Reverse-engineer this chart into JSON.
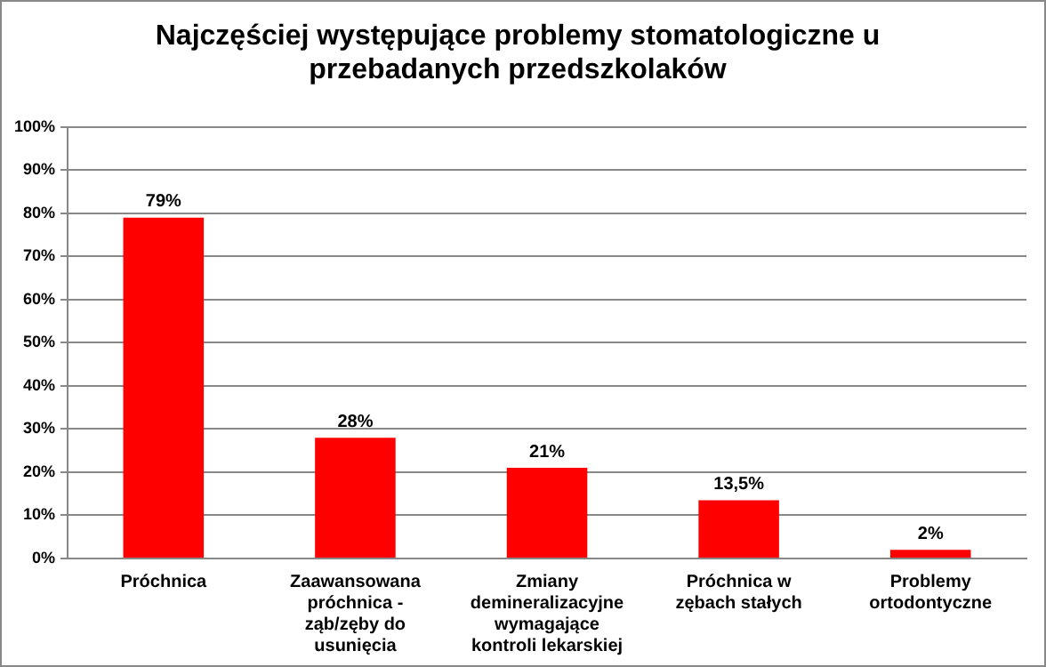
{
  "chart_data": {
    "type": "bar",
    "title": "Najczęściej występujące problemy stomatologiczne u przebadanych przedszkolaków",
    "categories": [
      "Próchnica",
      "Zaawansowana próchnica - ząb/zęby do usunięcia",
      "Zmiany demineralizacyjne wymagające kontroli lekarskiej",
      "Próchnica w zębach stałych",
      "Problemy ortodontyczne"
    ],
    "values": [
      79,
      28,
      21,
      13.5,
      2
    ],
    "value_labels": [
      "79%",
      "28%",
      "21%",
      "13,5%",
      "2%"
    ],
    "color": "#ff0000",
    "ylim": [
      0,
      100
    ],
    "yticks": [
      {
        "value": 0,
        "label": "0%"
      },
      {
        "value": 10,
        "label": "10%"
      },
      {
        "value": 20,
        "label": "20%"
      },
      {
        "value": 30,
        "label": "30%"
      },
      {
        "value": 40,
        "label": "40%"
      },
      {
        "value": 50,
        "label": "50%"
      },
      {
        "value": 60,
        "label": "60%"
      },
      {
        "value": 70,
        "label": "70%"
      },
      {
        "value": 80,
        "label": "80%"
      },
      {
        "value": 90,
        "label": "90%"
      },
      {
        "value": 100,
        "label": "100%"
      }
    ],
    "grid": "y"
  }
}
